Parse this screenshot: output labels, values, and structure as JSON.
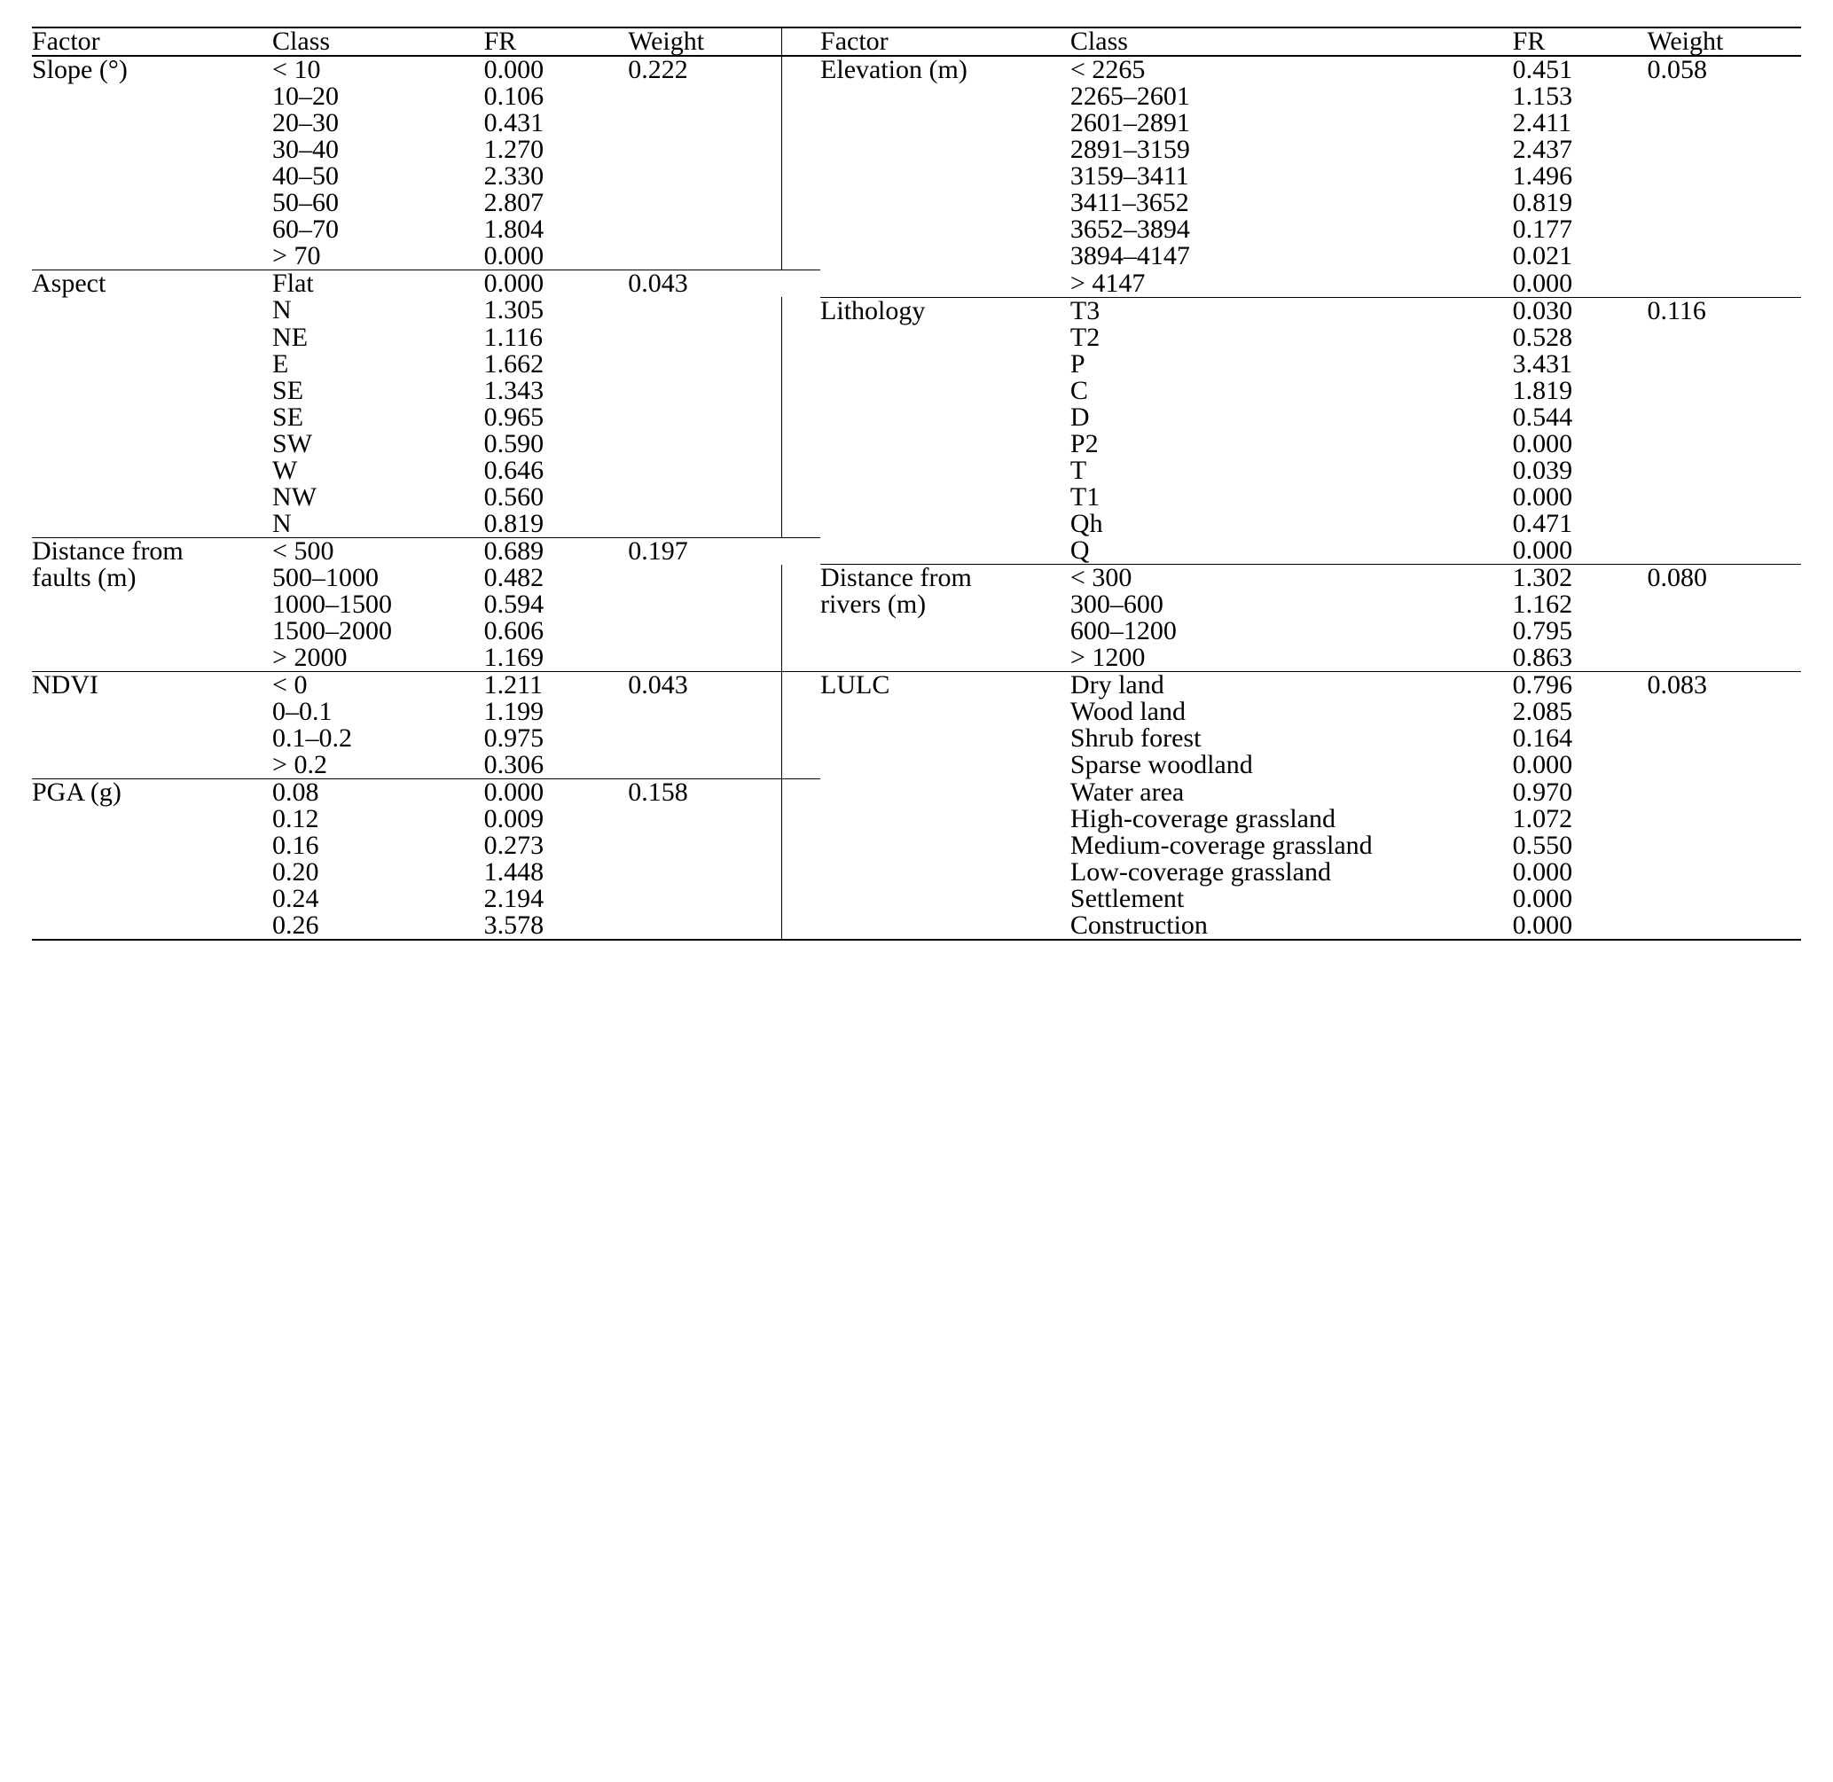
{
  "colors": {
    "background": "#ffffff",
    "text": "#000000",
    "rule": "#000000"
  },
  "typography": {
    "font_family": "Times New Roman, serif",
    "font_size_pt": 22,
    "line_height": 1.0
  },
  "headers": {
    "factor": "Factor",
    "class": "Class",
    "fr": "FR",
    "weight": "Weight"
  },
  "left_groups": [
    {
      "factor_lines": [
        "Slope (°)"
      ],
      "weight": "0.222",
      "rows": [
        {
          "class": "< 10",
          "fr": "0.000"
        },
        {
          "class": "10–20",
          "fr": "0.106"
        },
        {
          "class": "20–30",
          "fr": "0.431"
        },
        {
          "class": "30–40",
          "fr": "1.270"
        },
        {
          "class": "40–50",
          "fr": "2.330"
        },
        {
          "class": "50–60",
          "fr": "2.807"
        },
        {
          "class": "60–70",
          "fr": "1.804"
        },
        {
          "class": "> 70",
          "fr": "0.000"
        }
      ]
    },
    {
      "factor_lines": [
        "Aspect"
      ],
      "weight": "0.043",
      "rows": [
        {
          "class": "Flat",
          "fr": "0.000"
        },
        {
          "class": "N",
          "fr": "1.305"
        },
        {
          "class": "NE",
          "fr": "1.116"
        },
        {
          "class": "E",
          "fr": "1.662"
        },
        {
          "class": "SE",
          "fr": "1.343"
        },
        {
          "class": "SE",
          "fr": "0.965"
        },
        {
          "class": "SW",
          "fr": "0.590"
        },
        {
          "class": "W",
          "fr": "0.646"
        },
        {
          "class": "NW",
          "fr": "0.560"
        },
        {
          "class": "N",
          "fr": "0.819"
        }
      ]
    },
    {
      "factor_lines": [
        "Distance from",
        "faults (m)"
      ],
      "weight": "0.197",
      "rows": [
        {
          "class": "< 500",
          "fr": "0.689"
        },
        {
          "class": "500–1000",
          "fr": "0.482"
        },
        {
          "class": "1000–1500",
          "fr": "0.594"
        },
        {
          "class": "1500–2000",
          "fr": "0.606"
        },
        {
          "class": "> 2000",
          "fr": "1.169"
        }
      ]
    },
    {
      "factor_lines": [
        "NDVI"
      ],
      "weight": "0.043",
      "rows": [
        {
          "class": "< 0",
          "fr": "1.211"
        },
        {
          "class": "0–0.1",
          "fr": "1.199"
        },
        {
          "class": "0.1–0.2",
          "fr": "0.975"
        },
        {
          "class": "> 0.2",
          "fr": "0.306"
        }
      ]
    },
    {
      "factor_lines": [
        "PGA (g)"
      ],
      "weight": "0.158",
      "rows": [
        {
          "class": "0.08",
          "fr": "0.000"
        },
        {
          "class": "0.12",
          "fr": "0.009"
        },
        {
          "class": "0.16",
          "fr": "0.273"
        },
        {
          "class": "0.20",
          "fr": "1.448"
        },
        {
          "class": "0.24",
          "fr": "2.194"
        },
        {
          "class": "0.26",
          "fr": "3.578"
        }
      ]
    }
  ],
  "right_groups": [
    {
      "factor_lines": [
        "Elevation (m)"
      ],
      "weight": "0.058",
      "rows": [
        {
          "class": "< 2265",
          "fr": "0.451"
        },
        {
          "class": "2265–2601",
          "fr": "1.153"
        },
        {
          "class": "2601–2891",
          "fr": "2.411"
        },
        {
          "class": "2891–3159",
          "fr": "2.437"
        },
        {
          "class": "3159–3411",
          "fr": "1.496"
        },
        {
          "class": "3411–3652",
          "fr": "0.819"
        },
        {
          "class": "3652–3894",
          "fr": "0.177"
        },
        {
          "class": "3894–4147",
          "fr": "0.021"
        },
        {
          "class": "> 4147",
          "fr": "0.000"
        }
      ]
    },
    {
      "factor_lines": [
        "Lithology"
      ],
      "weight": "0.116",
      "rows": [
        {
          "class": "T3",
          "fr": "0.030"
        },
        {
          "class": "T2",
          "fr": "0.528"
        },
        {
          "class": "P",
          "fr": "3.431"
        },
        {
          "class": "C",
          "fr": "1.819"
        },
        {
          "class": "D",
          "fr": "0.544"
        },
        {
          "class": "P2",
          "fr": "0.000"
        },
        {
          "class": "T",
          "fr": "0.039"
        },
        {
          "class": "T1",
          "fr": "0.000"
        },
        {
          "class": "Qh",
          "fr": "0.471"
        },
        {
          "class": "Q",
          "fr": "0.000"
        }
      ]
    },
    {
      "factor_lines": [
        "Distance from",
        "rivers (m)"
      ],
      "weight": "0.080",
      "rows": [
        {
          "class": "< 300",
          "fr": "1.302"
        },
        {
          "class": "300–600",
          "fr": "1.162"
        },
        {
          "class": "600–1200",
          "fr": "0.795"
        },
        {
          "class": "> 1200",
          "fr": "0.863"
        }
      ]
    },
    {
      "factor_lines": [
        "LULC"
      ],
      "weight": "0.083",
      "rows": [
        {
          "class": "Dry land",
          "fr": "0.796"
        },
        {
          "class": "Wood land",
          "fr": "2.085"
        },
        {
          "class": "Shrub forest",
          "fr": "0.164"
        },
        {
          "class": "Sparse woodland",
          "fr": "0.000"
        },
        {
          "class": "Water area",
          "fr": "0.970"
        },
        {
          "class": "High-coverage grassland",
          "fr": "1.072"
        },
        {
          "class": "Medium-coverage grassland",
          "fr": "0.550"
        },
        {
          "class": "Low-coverage grassland",
          "fr": "0.000"
        },
        {
          "class": "Settlement",
          "fr": "0.000"
        },
        {
          "class": "Construction",
          "fr": "0.000"
        }
      ]
    }
  ],
  "layout_hints": {
    "left_factor_row_spans": {
      "Distance from": {
        "line0_rows": 1,
        "line1_starts_at_row": 1
      }
    },
    "left_section_starts": [
      0,
      8,
      18,
      23,
      27
    ],
    "right_section_starts": [
      0,
      9,
      19,
      23
    ],
    "right_divider_break_rows": [
      8,
      18
    ],
    "total_rows": 33
  }
}
